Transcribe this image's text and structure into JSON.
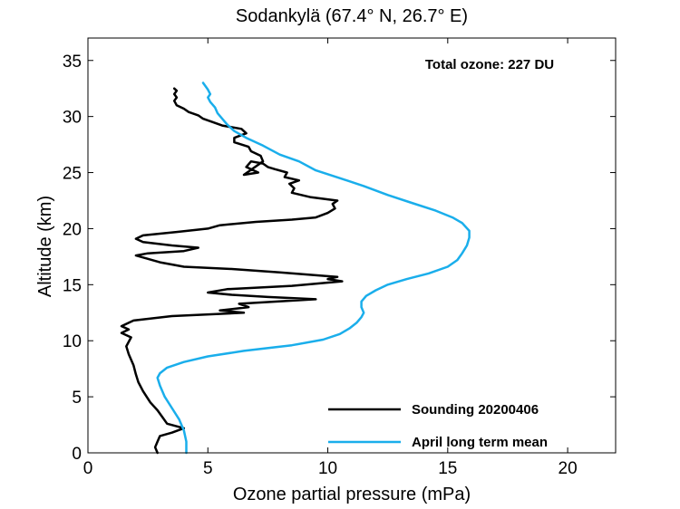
{
  "chart_data": {
    "type": "line",
    "title": "Sodankylä (67.4° N, 26.7° E)",
    "xlabel": "Ozone partial pressure (mPa)",
    "ylabel": "Altitude (km)",
    "xlim": [
      0,
      22
    ],
    "ylim": [
      0,
      37
    ],
    "xticks": [
      0,
      5,
      10,
      15,
      20
    ],
    "yticks": [
      0,
      5,
      10,
      15,
      20,
      25,
      30,
      35
    ],
    "grid": false,
    "annotation": "Total ozone: 227 DU",
    "legend_position": "bottom-right",
    "series": [
      {
        "name": "Sounding 20200406",
        "color": "#000000",
        "points": [
          [
            2.9,
            0.0
          ],
          [
            2.8,
            0.5
          ],
          [
            2.9,
            1.0
          ],
          [
            3.0,
            1.5
          ],
          [
            3.5,
            1.8
          ],
          [
            4.0,
            2.2
          ],
          [
            3.3,
            2.6
          ],
          [
            3.1,
            3.2
          ],
          [
            2.9,
            3.8
          ],
          [
            2.6,
            4.5
          ],
          [
            2.3,
            5.5
          ],
          [
            2.1,
            6.3
          ],
          [
            2.0,
            7.0
          ],
          [
            1.9,
            7.8
          ],
          [
            1.7,
            8.8
          ],
          [
            1.6,
            9.5
          ],
          [
            1.8,
            10.3
          ],
          [
            1.4,
            10.7
          ],
          [
            1.7,
            11.0
          ],
          [
            1.4,
            11.3
          ],
          [
            1.9,
            11.8
          ],
          [
            3.5,
            12.2
          ],
          [
            6.5,
            12.5
          ],
          [
            5.5,
            12.7
          ],
          [
            6.7,
            13.0
          ],
          [
            6.3,
            13.3
          ],
          [
            9.5,
            13.7
          ],
          [
            7.5,
            13.9
          ],
          [
            6.0,
            14.1
          ],
          [
            5.0,
            14.3
          ],
          [
            5.8,
            14.6
          ],
          [
            8.5,
            14.9
          ],
          [
            10.6,
            15.3
          ],
          [
            10.0,
            15.5
          ],
          [
            10.4,
            15.7
          ],
          [
            8.0,
            16.1
          ],
          [
            6.0,
            16.4
          ],
          [
            4.0,
            16.6
          ],
          [
            3.0,
            17.0
          ],
          [
            2.0,
            17.6
          ],
          [
            2.5,
            17.8
          ],
          [
            4.0,
            18.0
          ],
          [
            4.6,
            18.3
          ],
          [
            3.5,
            18.5
          ],
          [
            2.3,
            18.8
          ],
          [
            2.0,
            19.1
          ],
          [
            2.3,
            19.4
          ],
          [
            3.7,
            19.7
          ],
          [
            5.0,
            20.0
          ],
          [
            5.5,
            20.3
          ],
          [
            7.0,
            20.6
          ],
          [
            8.5,
            20.8
          ],
          [
            9.5,
            21.0
          ],
          [
            10.0,
            21.4
          ],
          [
            10.3,
            21.8
          ],
          [
            10.2,
            22.2
          ],
          [
            10.4,
            22.5
          ],
          [
            9.3,
            22.8
          ],
          [
            8.5,
            23.2
          ],
          [
            8.6,
            23.6
          ],
          [
            8.4,
            24.0
          ],
          [
            8.8,
            24.3
          ],
          [
            8.2,
            24.6
          ],
          [
            8.3,
            25.0
          ],
          [
            7.8,
            25.3
          ],
          [
            7.5,
            25.5
          ],
          [
            7.3,
            25.8
          ],
          [
            6.8,
            26.0
          ],
          [
            6.6,
            25.5
          ],
          [
            7.1,
            25.0
          ],
          [
            6.5,
            24.8
          ],
          [
            7.3,
            26.0
          ],
          [
            7.2,
            26.5
          ],
          [
            6.8,
            26.9
          ],
          [
            6.7,
            27.3
          ],
          [
            6.1,
            27.7
          ],
          [
            6.1,
            28.1
          ],
          [
            6.6,
            28.5
          ],
          [
            6.4,
            28.9
          ],
          [
            5.6,
            29.2
          ],
          [
            5.2,
            29.5
          ],
          [
            4.8,
            29.8
          ],
          [
            4.6,
            30.1
          ],
          [
            4.2,
            30.4
          ],
          [
            4.0,
            30.7
          ],
          [
            3.7,
            31.0
          ],
          [
            3.6,
            31.4
          ],
          [
            3.7,
            31.7
          ],
          [
            3.6,
            32.0
          ],
          [
            3.7,
            32.3
          ],
          [
            3.6,
            32.5
          ]
        ]
      },
      {
        "name": "April long term mean",
        "color": "#1aaeeb",
        "points": [
          [
            4.1,
            0.0
          ],
          [
            4.1,
            1.0
          ],
          [
            4.0,
            2.0
          ],
          [
            3.8,
            3.0
          ],
          [
            3.5,
            4.0
          ],
          [
            3.2,
            5.0
          ],
          [
            3.0,
            6.0
          ],
          [
            2.9,
            6.7
          ],
          [
            3.0,
            7.1
          ],
          [
            3.3,
            7.6
          ],
          [
            4.0,
            8.1
          ],
          [
            5.0,
            8.6
          ],
          [
            6.5,
            9.1
          ],
          [
            8.5,
            9.6
          ],
          [
            9.8,
            10.1
          ],
          [
            10.5,
            10.6
          ],
          [
            10.9,
            11.1
          ],
          [
            11.2,
            11.6
          ],
          [
            11.4,
            12.1
          ],
          [
            11.5,
            12.5
          ],
          [
            11.4,
            13.0
          ],
          [
            11.4,
            13.5
          ],
          [
            11.6,
            14.0
          ],
          [
            12.0,
            14.5
          ],
          [
            12.5,
            15.0
          ],
          [
            13.3,
            15.5
          ],
          [
            14.2,
            16.0
          ],
          [
            15.0,
            16.6
          ],
          [
            15.4,
            17.2
          ],
          [
            15.6,
            17.8
          ],
          [
            15.8,
            18.5
          ],
          [
            15.9,
            19.2
          ],
          [
            15.9,
            19.8
          ],
          [
            15.6,
            20.5
          ],
          [
            15.2,
            21.0
          ],
          [
            14.5,
            21.6
          ],
          [
            13.5,
            22.3
          ],
          [
            12.5,
            23.0
          ],
          [
            11.5,
            23.8
          ],
          [
            10.5,
            24.5
          ],
          [
            9.5,
            25.2
          ],
          [
            8.8,
            26.0
          ],
          [
            8.0,
            26.6
          ],
          [
            7.3,
            27.4
          ],
          [
            6.6,
            28.1
          ],
          [
            6.1,
            28.7
          ],
          [
            5.8,
            29.3
          ],
          [
            5.6,
            29.8
          ],
          [
            5.4,
            30.3
          ],
          [
            5.3,
            30.8
          ],
          [
            5.1,
            31.3
          ],
          [
            5.0,
            31.7
          ],
          [
            5.1,
            32.0
          ],
          [
            5.0,
            32.4
          ],
          [
            4.8,
            33.0
          ]
        ]
      }
    ]
  }
}
